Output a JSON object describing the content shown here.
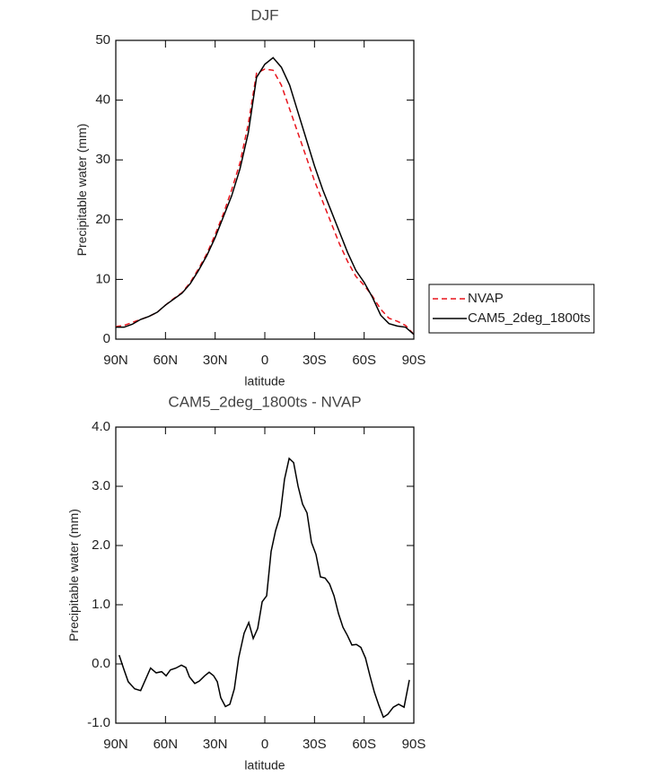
{
  "chart_data": [
    {
      "type": "line",
      "title": "DJF",
      "xlabel": "latitude",
      "ylabel": "Precipitable water (mm)",
      "xlim": [
        90,
        -90
      ],
      "ylim": [
        0,
        50
      ],
      "xticks": [
        {
          "value": 90,
          "label": "90N"
        },
        {
          "value": 60,
          "label": "60N"
        },
        {
          "value": 30,
          "label": "30N"
        },
        0,
        {
          "value": -30,
          "label": "30S"
        },
        {
          "value": -60,
          "label": "60S"
        },
        {
          "value": -90,
          "label": "90S"
        }
      ],
      "yticks": [
        0,
        10,
        20,
        30,
        40,
        50
      ],
      "x": [
        90,
        85,
        80,
        75,
        70,
        65,
        60,
        55,
        50,
        45,
        40,
        35,
        30,
        25,
        20,
        15,
        10,
        5,
        0,
        -5,
        -10,
        -15,
        -20,
        -25,
        -30,
        -35,
        -40,
        -45,
        -50,
        -55,
        -60,
        -65,
        -70,
        -75,
        -80,
        -85,
        -90
      ],
      "legend": "right",
      "series": [
        {
          "name": "NVAP",
          "color": "#e8141c",
          "dashed": true,
          "values": [
            2.1,
            2.3,
            2.8,
            3.3,
            3.8,
            4.5,
            5.7,
            6.8,
            7.8,
            9.5,
            11.8,
            14.3,
            17.5,
            21.0,
            25.0,
            29.5,
            36.0,
            44.5,
            45.2,
            45.0,
            42.5,
            38.5,
            34.5,
            30.5,
            26.5,
            23.0,
            19.5,
            16.0,
            13.0,
            10.5,
            9.0,
            7.2,
            5.0,
            3.5,
            3.0,
            2.3,
            0.8
          ]
        },
        {
          "name": "CAM5_2deg_1800ts",
          "color": "#000000",
          "dashed": false,
          "values": [
            2.0,
            2.0,
            2.5,
            3.3,
            3.8,
            4.5,
            5.7,
            6.7,
            7.7,
            9.3,
            11.5,
            14.0,
            17.0,
            20.5,
            24.0,
            28.5,
            34.5,
            43.8,
            46.0,
            47.1,
            45.5,
            42.5,
            38.0,
            33.5,
            29.0,
            25.0,
            21.5,
            18.0,
            14.5,
            11.5,
            9.5,
            7.0,
            4.0,
            2.6,
            2.2,
            2.0,
            0.8
          ]
        }
      ]
    },
    {
      "type": "line",
      "title": "CAM5_2deg_1800ts - NVAP",
      "xlabel": "latitude",
      "ylabel": "Precipitable water (mm)",
      "xlim": [
        90,
        -90
      ],
      "ylim": [
        -1,
        4
      ],
      "xticks": [
        {
          "value": 90,
          "label": "90N"
        },
        {
          "value": 60,
          "label": "60N"
        },
        {
          "value": 30,
          "label": "30N"
        },
        0,
        {
          "value": -30,
          "label": "30S"
        },
        {
          "value": -60,
          "label": "60S"
        },
        {
          "value": -90,
          "label": "90S"
        }
      ],
      "yticks": [
        {
          "value": -1,
          "label": "-1.0"
        },
        {
          "value": 0,
          "label": "0.0"
        },
        {
          "value": 1,
          "label": "1.0"
        },
        {
          "value": 2,
          "label": "2.0"
        },
        {
          "value": 3,
          "label": "3.0"
        },
        {
          "value": 4,
          "label": "4.0"
        }
      ],
      "color": "#000000",
      "x": [
        88,
        85,
        82.5,
        78.6,
        75,
        69,
        65.6,
        62.3,
        59.6,
        57,
        53.7,
        50.4,
        47.7,
        45.5,
        42.3,
        39.6,
        36.3,
        33.6,
        30.9,
        28.7,
        26.6,
        23.8,
        21.1,
        18.4,
        15.8,
        12.5,
        9.7,
        7.0,
        4.3,
        1.6,
        -1.1,
        -3.8,
        -6.5,
        -9.2,
        -11.9,
        -14.7,
        -17.4,
        -20.1,
        -22.8,
        -25.5,
        -28.2,
        -30.9,
        -33.6,
        -36.4,
        -39.1,
        -41.8,
        -44.5,
        -47.2,
        -49.9,
        -52.6,
        -55.3,
        -58.0,
        -60.8,
        -63.5,
        -66.2,
        -68.9,
        -71.6,
        -74.3,
        -77.6,
        -80.8,
        -84.1,
        -87.3
      ],
      "values": [
        0.15,
        -0.1,
        -0.3,
        -0.42,
        -0.45,
        -0.07,
        -0.15,
        -0.13,
        -0.2,
        -0.1,
        -0.07,
        -0.02,
        -0.06,
        -0.22,
        -0.33,
        -0.29,
        -0.2,
        -0.14,
        -0.2,
        -0.3,
        -0.57,
        -0.72,
        -0.68,
        -0.42,
        0.1,
        0.52,
        0.7,
        0.43,
        0.6,
        1.05,
        1.15,
        1.9,
        2.25,
        2.5,
        3.12,
        3.47,
        3.4,
        3.0,
        2.7,
        2.55,
        2.05,
        1.85,
        1.47,
        1.45,
        1.35,
        1.15,
        0.85,
        0.62,
        0.48,
        0.32,
        0.33,
        0.28,
        0.1,
        -0.2,
        -0.48,
        -0.7,
        -0.9,
        -0.85,
        -0.73,
        -0.68,
        -0.73,
        -0.27
      ]
    }
  ]
}
